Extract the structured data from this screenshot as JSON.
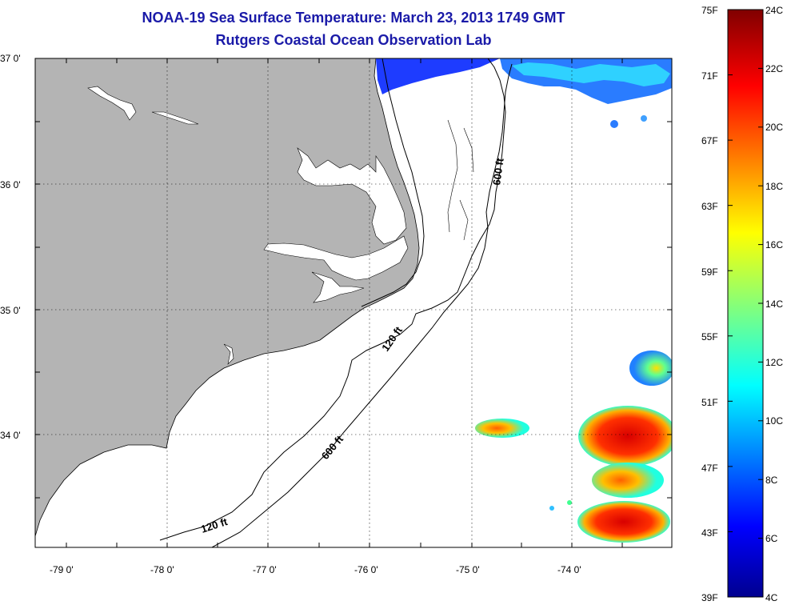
{
  "title": {
    "line1": "NOAA-19 Sea Surface Temperature:  March 23, 2013 1749 GMT",
    "line2": "Rutgers Coastal Ocean Observation Lab"
  },
  "axes": {
    "lat_labels": [
      "37 0'",
      "36 0'",
      "35 0'",
      "34 0'"
    ],
    "lon_labels": [
      "-79 0'",
      "-78 0'",
      "-77 0'",
      "-76 0'",
      "-75 0'",
      "-74 0'"
    ]
  },
  "contours": {
    "label_120_south": "120 ft",
    "label_600_south": "600 ft",
    "label_120_mid": "120 ft",
    "label_600_north": "600 ft"
  },
  "colorbar": {
    "fahrenheit_labels": [
      "75F",
      "71F",
      "67F",
      "63F",
      "59F",
      "55F",
      "51F",
      "47F",
      "43F",
      "39F"
    ],
    "celsius_labels": [
      "24C",
      "22C",
      "20C",
      "18C",
      "16C",
      "14C",
      "12C",
      "10C",
      "8C",
      "6C",
      "4C"
    ]
  },
  "colors": {
    "land": "#b4b4b4",
    "title": "#1a1aa8"
  }
}
